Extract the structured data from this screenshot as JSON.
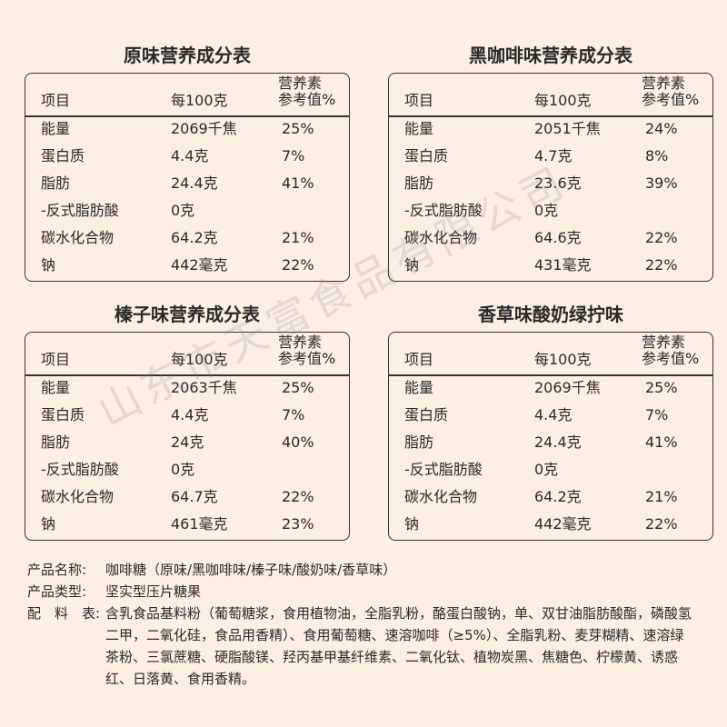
{
  "tables": [
    {
      "title": "原味营养成分表",
      "headers": [
        "项目",
        "每100克",
        "营养素",
        "参考值%"
      ],
      "rows": [
        [
          "能量",
          "2069千焦",
          "25%"
        ],
        [
          "蛋白质",
          "4.4克",
          "7%"
        ],
        [
          "脂肪",
          "24.4克",
          "41%"
        ],
        [
          "-反式脂肪酸",
          "0克"
        ],
        [
          "碳水化合物",
          "64.2克",
          "21%"
        ],
        [
          "钠",
          "442毫克",
          "22%"
        ]
      ]
    },
    {
      "title": "黑咖啡味营养成分表",
      "headers": [
        "项目",
        "每100克",
        "营养素",
        "参考值%"
      ],
      "rows": [
        [
          "能量",
          "2051千焦",
          "24%"
        ],
        [
          "蛋白质",
          "4.7克",
          "8%"
        ],
        [
          "脂肪",
          "23.6克",
          "39%"
        ],
        [
          "-反式脂肪酸",
          "0克"
        ],
        [
          "碳水化合物",
          "64.6克",
          "22%"
        ],
        [
          "钠",
          "431毫克",
          "22%"
        ]
      ]
    },
    {
      "title": "榛子味营养成分表",
      "headers": [
        "项目",
        "每100克",
        "营养素",
        "参考值%"
      ],
      "rows": [
        [
          "能量",
          "2063千焦",
          "25%"
        ],
        [
          "蛋白质",
          "4.4克",
          "7%"
        ],
        [
          "脂肪",
          "24克",
          "40%"
        ],
        [
          "-反式脂肪酸",
          "0克"
        ],
        [
          "碳水化合物",
          "64.7克",
          "22%"
        ],
        [
          "钠",
          "461毫克",
          "23%"
        ]
      ]
    },
    {
      "title": "香草味酸奶绿拧味",
      "headers": [
        "项目",
        "每100克",
        "营养素",
        "参考值%"
      ],
      "rows": [
        [
          "能量",
          "2069千焦",
          "25%"
        ],
        [
          "蛋白质",
          "4.4克",
          "7%"
        ],
        [
          "脂肪",
          "24.4克",
          "41%"
        ],
        [
          "-反式脂肪酸",
          "0克"
        ],
        [
          "碳水化合物",
          "64.2克",
          "21%"
        ],
        [
          "钠",
          "442毫克",
          "22%"
        ]
      ]
    }
  ],
  "product_info": [
    {
      "label": "产品名称:",
      "value": "咖啡糖（原味/黑咖啡味/榛子味/酸奶味/香草味）"
    },
    {
      "label": "产品类型:",
      "value": "坚实型压片糖果"
    },
    {
      "label": "配　料　表:",
      "value": "含乳食品基料粉（葡萄糖浆，食用植物油，全脂乳粉，酪蛋白酸钠，单、双甘油脂肪酸酯，磷酸氢二甲，二氧化硅，食品用香精）、食用葡萄糖、速溶咖啡（≥5%）、全脂乳粉、麦芽糊精、速溶绿茶粉、三氯蔗糖、硬脂酸镁、羟丙基甲基纤维素、二氧化钛、植物炭黑、焦糖色、柠檬黄、诱惑红、日落黄、食用香精。"
    }
  ],
  "watermark": "山东市天富食品有限公司"
}
